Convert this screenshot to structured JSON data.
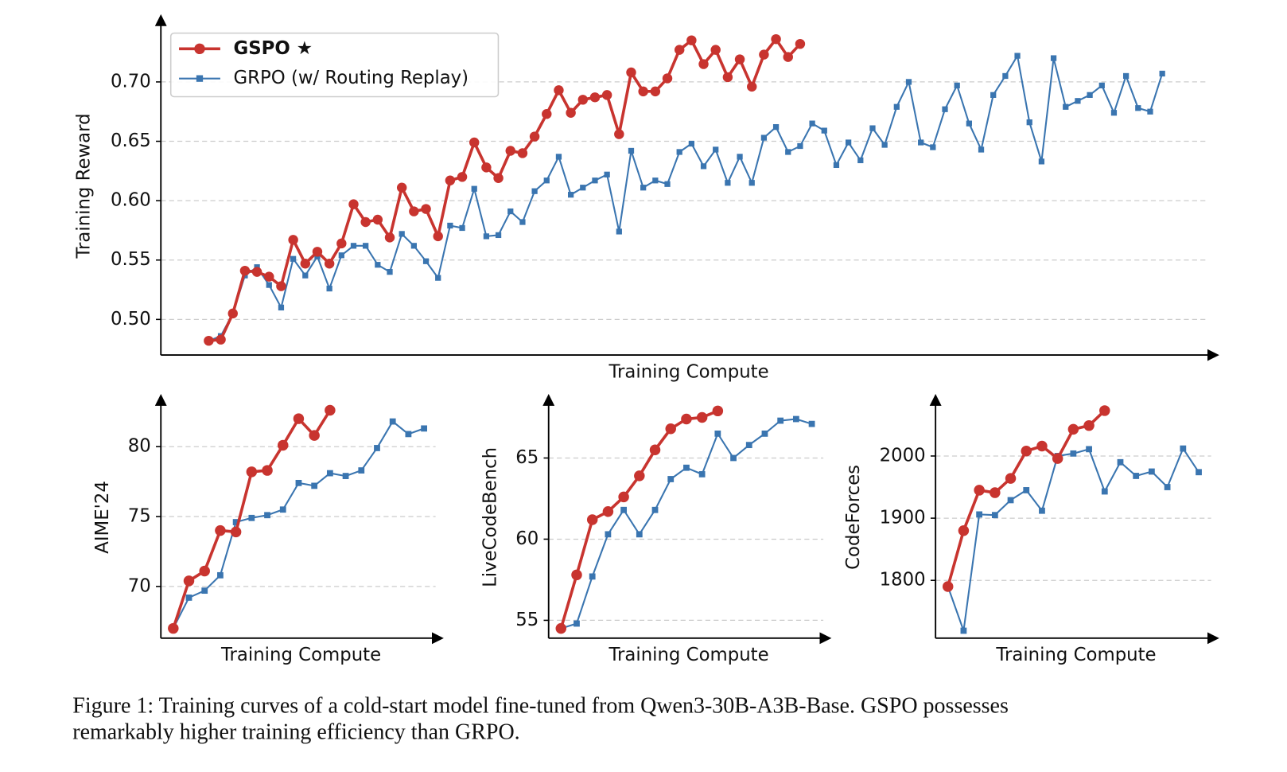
{
  "chart_data": [
    {
      "type": "line",
      "ylabel": "Training Reward",
      "xlabel": "Training Compute",
      "ylim": [
        0.47,
        0.755
      ],
      "yticks": [
        {
          "value": 0.5,
          "label": "0.50"
        },
        {
          "value": 0.55,
          "label": "0.55"
        },
        {
          "value": 0.6,
          "label": "0.60"
        },
        {
          "value": 0.65,
          "label": "0.65"
        },
        {
          "value": 0.7,
          "label": "0.70"
        }
      ],
      "grid": true,
      "legend": "upper left",
      "series": [
        {
          "name": "GSPO ★",
          "color": "#c8342f",
          "values": [
            0.482,
            0.483,
            0.505,
            0.541,
            0.54,
            0.536,
            0.528,
            0.567,
            0.547,
            0.557,
            0.547,
            0.564,
            0.597,
            0.582,
            0.584,
            0.569,
            0.611,
            0.591,
            0.593,
            0.57,
            0.617,
            0.62,
            0.649,
            0.628,
            0.619,
            0.642,
            0.64,
            0.654,
            0.673,
            0.693,
            0.674,
            0.685,
            0.687,
            0.689,
            0.656,
            0.708,
            0.692,
            0.692,
            0.703,
            0.727,
            0.735,
            0.715,
            0.727,
            0.704,
            0.719,
            0.696,
            0.723,
            0.736,
            0.721,
            0.732
          ]
        },
        {
          "name": "GRPO (w/ Routing Replay)",
          "color": "#3a75b0",
          "values": [
            0.482,
            0.486,
            0.505,
            0.537,
            0.544,
            0.529,
            0.51,
            0.551,
            0.537,
            0.553,
            0.526,
            0.554,
            0.562,
            0.562,
            0.546,
            0.54,
            0.572,
            0.562,
            0.549,
            0.535,
            0.579,
            0.577,
            0.61,
            0.57,
            0.571,
            0.591,
            0.582,
            0.608,
            0.617,
            0.637,
            0.605,
            0.611,
            0.617,
            0.622,
            0.574,
            0.642,
            0.611,
            0.617,
            0.614,
            0.641,
            0.648,
            0.629,
            0.643,
            0.615,
            0.637,
            0.615,
            0.653,
            0.662,
            0.641,
            0.646,
            0.665,
            0.659,
            0.63,
            0.649,
            0.634,
            0.661,
            0.647,
            0.679,
            0.7,
            0.649,
            0.645,
            0.677,
            0.697,
            0.665,
            0.643,
            0.689,
            0.705,
            0.722,
            0.666,
            0.633,
            0.72,
            0.679,
            0.684,
            0.689,
            0.697,
            0.674,
            0.705,
            0.678,
            0.675,
            0.707
          ]
        }
      ]
    },
    {
      "type": "line",
      "ylabel": "AIME'24",
      "xlabel": "Training Compute",
      "ylim": [
        66.3,
        83.6
      ],
      "yticks": [
        70,
        75,
        80
      ],
      "grid": true,
      "series": [
        {
          "color": "#c8342f",
          "values": [
            67.0,
            70.4,
            71.1,
            74.0,
            73.9,
            78.2,
            78.3,
            80.1,
            82.0,
            80.8,
            82.6
          ]
        },
        {
          "color": "#3a75b0",
          "values": [
            67.0,
            69.2,
            69.7,
            70.8,
            74.6,
            74.9,
            75.1,
            75.5,
            77.4,
            77.2,
            78.1,
            77.9,
            78.3,
            79.9,
            81.8,
            80.9,
            81.3
          ]
        }
      ]
    },
    {
      "type": "line",
      "ylabel": "LiveCodeBench",
      "xlabel": "Training Compute",
      "ylim": [
        53.9,
        68.8
      ],
      "yticks": [
        55,
        60,
        65
      ],
      "grid": true,
      "series": [
        {
          "color": "#c8342f",
          "values": [
            54.5,
            57.8,
            61.2,
            61.7,
            62.6,
            63.9,
            65.5,
            66.8,
            67.4,
            67.5,
            67.9
          ]
        },
        {
          "color": "#3a75b0",
          "values": [
            54.5,
            54.8,
            57.7,
            60.3,
            61.8,
            60.3,
            61.8,
            63.7,
            64.4,
            64.0,
            66.5,
            65.0,
            65.8,
            66.5,
            67.3,
            67.4,
            67.1
          ]
        }
      ]
    },
    {
      "type": "line",
      "ylabel": "CodeForces",
      "xlabel": "Training Compute",
      "ylim": [
        1707,
        2096
      ],
      "yticks": [
        1800,
        1900,
        2000
      ],
      "grid": true,
      "series": [
        {
          "color": "#c8342f",
          "values": [
            1790,
            1880,
            1945,
            1941,
            1964,
            2008,
            2016,
            1996,
            2043,
            2049,
            2073
          ]
        },
        {
          "color": "#3a75b0",
          "values": [
            1790,
            1719,
            1906,
            1905,
            1929,
            1945,
            1912,
            2000,
            2004,
            2011,
            1943,
            1990,
            1968,
            1975,
            1950,
            2012,
            1974
          ]
        }
      ]
    }
  ],
  "caption": [
    "Figure 1: Training curves of a cold-start model fine-tuned from Qwen3-30B-A3B-Base. GSPO possesses",
    "remarkably higher training efficiency than GRPO."
  ]
}
